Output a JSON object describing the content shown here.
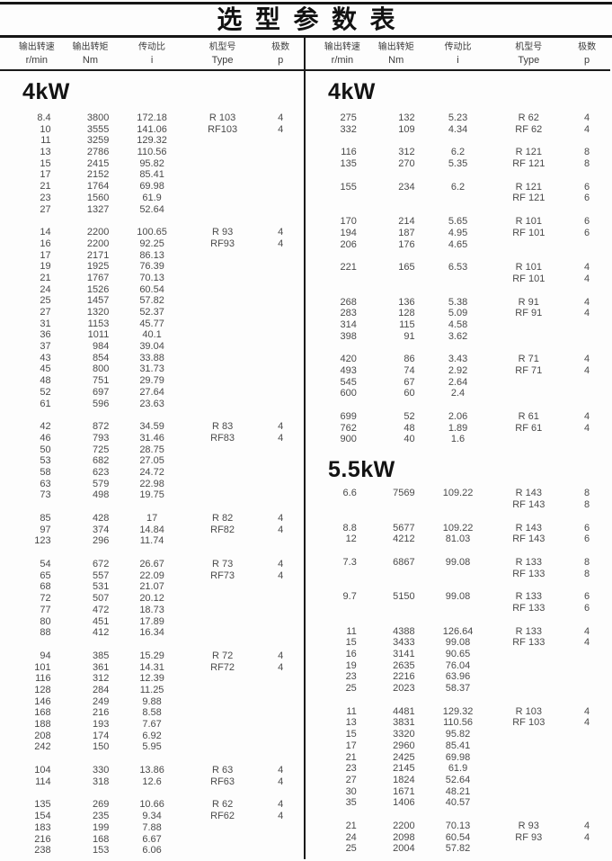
{
  "title": "选型参数表",
  "columns": [
    {
      "cn": "输出转速",
      "unit": "r/min"
    },
    {
      "cn": "输出转矩",
      "unit": "Nm"
    },
    {
      "cn": "传动比",
      "unit": "i"
    },
    {
      "cn": "机型号",
      "unit": "Type"
    },
    {
      "cn": "极数",
      "unit": "p"
    }
  ],
  "left": {
    "sections": [
      {
        "heading": "4kW",
        "groups": [
          [
            [
              "8.4",
              "3800",
              "172.18",
              "R 103",
              "4"
            ],
            [
              "10",
              "3555",
              "141.06",
              "RF103",
              "4"
            ],
            [
              "11",
              "3259",
              "129.32",
              "",
              ""
            ],
            [
              "13",
              "2786",
              "110.56",
              "",
              ""
            ],
            [
              "15",
              "2415",
              "95.82",
              "",
              ""
            ],
            [
              "17",
              "2152",
              "85.41",
              "",
              ""
            ],
            [
              "21",
              "1764",
              "69.98",
              "",
              ""
            ],
            [
              "23",
              "1560",
              "61.9",
              "",
              ""
            ],
            [
              "27",
              "1327",
              "52.64",
              "",
              ""
            ]
          ],
          [
            [
              "14",
              "2200",
              "100.65",
              "R 93",
              "4"
            ],
            [
              "16",
              "2200",
              "92.25",
              "RF93",
              "4"
            ],
            [
              "17",
              "2171",
              "86.13",
              "",
              ""
            ],
            [
              "19",
              "1925",
              "76.39",
              "",
              ""
            ],
            [
              "21",
              "1767",
              "70.13",
              "",
              ""
            ],
            [
              "24",
              "1526",
              "60.54",
              "",
              ""
            ],
            [
              "25",
              "1457",
              "57.82",
              "",
              ""
            ],
            [
              "27",
              "1320",
              "52.37",
              "",
              ""
            ],
            [
              "31",
              "1153",
              "45.77",
              "",
              ""
            ],
            [
              "36",
              "1011",
              "40.1",
              "",
              ""
            ],
            [
              "37",
              "984",
              "39.04",
              "",
              ""
            ],
            [
              "43",
              "854",
              "33.88",
              "",
              ""
            ],
            [
              "45",
              "800",
              "31.73",
              "",
              ""
            ],
            [
              "48",
              "751",
              "29.79",
              "",
              ""
            ],
            [
              "52",
              "697",
              "27.64",
              "",
              ""
            ],
            [
              "61",
              "596",
              "23.63",
              "",
              ""
            ]
          ],
          [
            [
              "42",
              "872",
              "34.59",
              "R 83",
              "4"
            ],
            [
              "46",
              "793",
              "31.46",
              "RF83",
              "4"
            ],
            [
              "50",
              "725",
              "28.75",
              "",
              ""
            ],
            [
              "53",
              "682",
              "27.05",
              "",
              ""
            ],
            [
              "58",
              "623",
              "24.72",
              "",
              ""
            ],
            [
              "63",
              "579",
              "22.98",
              "",
              ""
            ],
            [
              "73",
              "498",
              "19.75",
              "",
              ""
            ]
          ],
          [
            [
              "85",
              "428",
              "17",
              "R 82",
              "4"
            ],
            [
              "97",
              "374",
              "14.84",
              "RF82",
              "4"
            ],
            [
              "123",
              "296",
              "11.74",
              "",
              ""
            ]
          ],
          [
            [
              "54",
              "672",
              "26.67",
              "R 73",
              "4"
            ],
            [
              "65",
              "557",
              "22.09",
              "RF73",
              "4"
            ],
            [
              "68",
              "531",
              "21.07",
              "",
              ""
            ],
            [
              "72",
              "507",
              "20.12",
              "",
              ""
            ],
            [
              "77",
              "472",
              "18.73",
              "",
              ""
            ],
            [
              "80",
              "451",
              "17.89",
              "",
              ""
            ],
            [
              "88",
              "412",
              "16.34",
              "",
              ""
            ]
          ],
          [
            [
              "94",
              "385",
              "15.29",
              "R 72",
              "4"
            ],
            [
              "101",
              "361",
              "14.31",
              "RF72",
              "4"
            ],
            [
              "116",
              "312",
              "12.39",
              "",
              ""
            ],
            [
              "128",
              "284",
              "11.25",
              "",
              ""
            ],
            [
              "146",
              "249",
              "9.88",
              "",
              ""
            ],
            [
              "168",
              "216",
              "8.58",
              "",
              ""
            ],
            [
              "188",
              "193",
              "7.67",
              "",
              ""
            ],
            [
              "208",
              "174",
              "6.92",
              "",
              ""
            ],
            [
              "242",
              "150",
              "5.95",
              "",
              ""
            ]
          ],
          [
            [
              "104",
              "330",
              "13.86",
              "R 63",
              "4"
            ],
            [
              "114",
              "318",
              "12.6",
              "RF63",
              "4"
            ]
          ],
          [
            [
              "135",
              "269",
              "10.66",
              "R 62",
              "4"
            ],
            [
              "154",
              "235",
              "9.34",
              "RF62",
              "4"
            ],
            [
              "183",
              "199",
              "7.88",
              "",
              ""
            ],
            [
              "216",
              "168",
              "6.67",
              "",
              ""
            ],
            [
              "238",
              "153",
              "6.06",
              "",
              ""
            ]
          ]
        ]
      }
    ]
  },
  "right": {
    "sections": [
      {
        "heading": "4kW",
        "groups": [
          [
            [
              "275",
              "132",
              "5.23",
              "R 62",
              "4"
            ],
            [
              "332",
              "109",
              "4.34",
              "RF 62",
              "4"
            ]
          ],
          [
            [
              "116",
              "312",
              "6.2",
              "R 121",
              "8"
            ],
            [
              "135",
              "270",
              "5.35",
              "RF 121",
              "8"
            ]
          ],
          [
            [
              "155",
              "234",
              "6.2",
              "R 121",
              "6"
            ],
            [
              "",
              "",
              "",
              "RF 121",
              "6"
            ]
          ],
          [
            [
              "170",
              "214",
              "5.65",
              "R 101",
              "6"
            ],
            [
              "194",
              "187",
              "4.95",
              "RF 101",
              "6"
            ],
            [
              "206",
              "176",
              "4.65",
              "",
              ""
            ]
          ],
          [
            [
              "221",
              "165",
              "6.53",
              "R 101",
              "4"
            ],
            [
              "",
              "",
              "",
              "RF 101",
              "4"
            ]
          ],
          [
            [
              "268",
              "136",
              "5.38",
              "R 91",
              "4"
            ],
            [
              "283",
              "128",
              "5.09",
              "RF 91",
              "4"
            ],
            [
              "314",
              "115",
              "4.58",
              "",
              ""
            ],
            [
              "398",
              "91",
              "3.62",
              "",
              ""
            ]
          ],
          [
            [
              "420",
              "86",
              "3.43",
              "R 71",
              "4"
            ],
            [
              "493",
              "74",
              "2.92",
              "RF 71",
              "4"
            ],
            [
              "545",
              "67",
              "2.64",
              "",
              ""
            ],
            [
              "600",
              "60",
              "2.4",
              "",
              ""
            ]
          ],
          [
            [
              "699",
              "52",
              "2.06",
              "R 61",
              "4"
            ],
            [
              "762",
              "48",
              "1.89",
              "RF 61",
              "4"
            ],
            [
              "900",
              "40",
              "1.6",
              "",
              ""
            ]
          ]
        ]
      },
      {
        "heading": "5.5kW",
        "groups": [
          [
            [
              "6.6",
              "7569",
              "109.22",
              "R 143",
              "8"
            ],
            [
              "",
              "",
              "",
              "RF 143",
              "8"
            ]
          ],
          [
            [
              "8.8",
              "5677",
              "109.22",
              "R 143",
              "6"
            ],
            [
              "12",
              "4212",
              "81.03",
              "RF 143",
              "6"
            ]
          ],
          [
            [
              "7.3",
              "6867",
              "99.08",
              "R 133",
              "8"
            ],
            [
              "",
              "",
              "",
              "RF 133",
              "8"
            ]
          ],
          [
            [
              "9.7",
              "5150",
              "99.08",
              "R 133",
              "6"
            ],
            [
              "",
              "",
              "",
              "RF 133",
              "6"
            ]
          ],
          [
            [
              "11",
              "4388",
              "126.64",
              "R 133",
              "4"
            ],
            [
              "15",
              "3433",
              "99.08",
              "RF 133",
              "4"
            ],
            [
              "16",
              "3141",
              "90.65",
              "",
              ""
            ],
            [
              "19",
              "2635",
              "76.04",
              "",
              ""
            ],
            [
              "23",
              "2216",
              "63.96",
              "",
              ""
            ],
            [
              "25",
              "2023",
              "58.37",
              "",
              ""
            ]
          ],
          [
            [
              "11",
              "4481",
              "129.32",
              "R 103",
              "4"
            ],
            [
              "13",
              "3831",
              "110.56",
              "RF 103",
              "4"
            ],
            [
              "15",
              "3320",
              "95.82",
              "",
              ""
            ],
            [
              "17",
              "2960",
              "85.41",
              "",
              ""
            ],
            [
              "21",
              "2425",
              "69.98",
              "",
              ""
            ],
            [
              "23",
              "2145",
              "61.9",
              "",
              ""
            ],
            [
              "27",
              "1824",
              "52.64",
              "",
              ""
            ],
            [
              "30",
              "1671",
              "48.21",
              "",
              ""
            ],
            [
              "35",
              "1406",
              "40.57",
              "",
              ""
            ]
          ],
          [
            [
              "21",
              "2200",
              "70.13",
              "R 93",
              "4"
            ],
            [
              "24",
              "2098",
              "60.54",
              "RF 93",
              "4"
            ],
            [
              "25",
              "2004",
              "57.82",
              "",
              ""
            ]
          ]
        ]
      }
    ]
  }
}
